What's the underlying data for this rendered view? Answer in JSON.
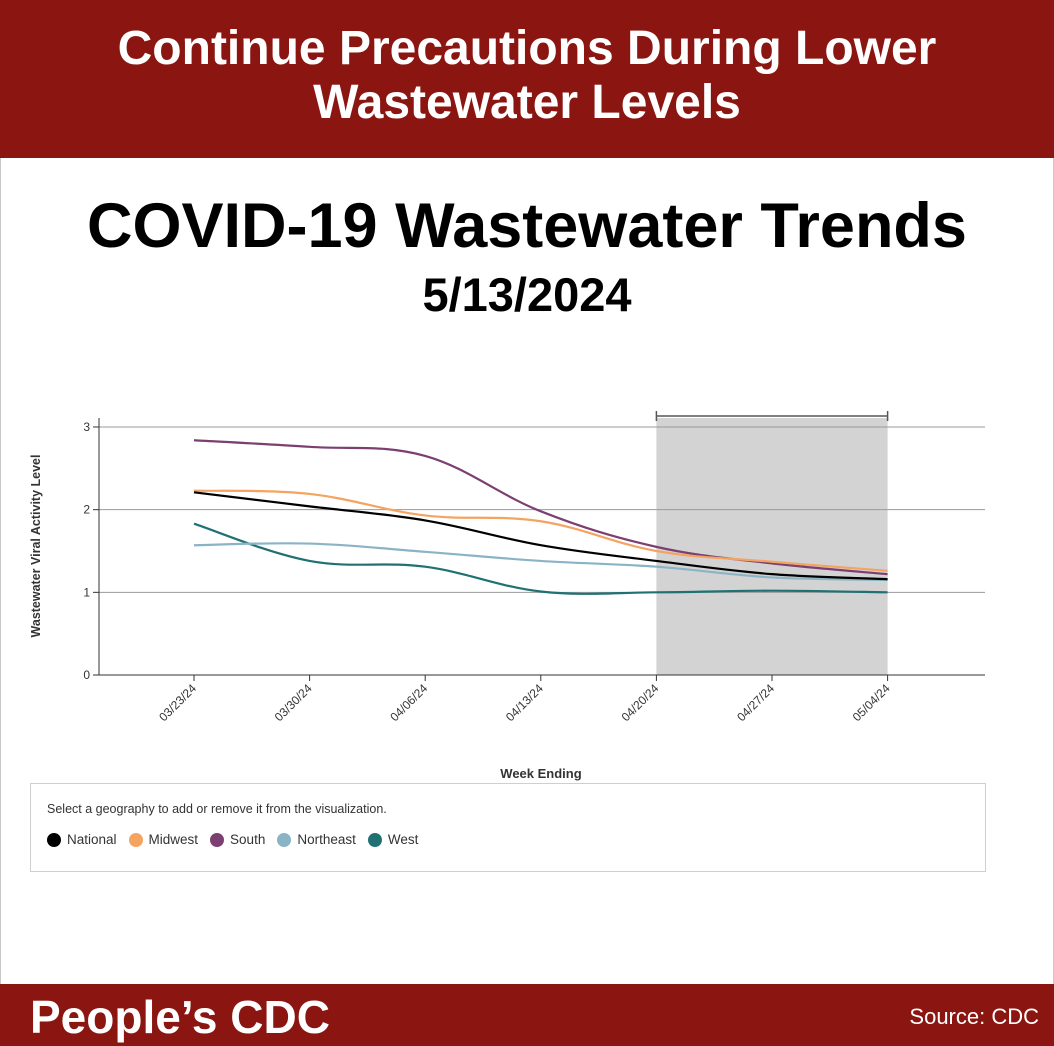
{
  "header": {
    "banner_line1": "Continue Precautions During Lower",
    "banner_line2": "Wastewater Levels",
    "title": "COVID-19 Wastewater Trends",
    "date": "5/13/2024"
  },
  "legend": {
    "instruction": "Select a geography to add or remove it from the visualization."
  },
  "footer": {
    "brand": "People’s CDC",
    "source": "Source: CDC"
  },
  "chart_data": {
    "type": "line",
    "xlabel": "Week Ending",
    "ylabel": "Wastewater Viral Activity Level",
    "ylim": [
      0,
      3
    ],
    "yticks": [
      0,
      1,
      2,
      3
    ],
    "grid": true,
    "categories": [
      "03/23/24",
      "03/30/24",
      "04/06/24",
      "04/13/24",
      "04/20/24",
      "04/27/24",
      "05/04/24"
    ],
    "highlight_range": [
      "04/20/24",
      "05/04/24"
    ],
    "series": [
      {
        "name": "National",
        "color": "#000000",
        "values": [
          2.21,
          2.04,
          1.87,
          1.57,
          1.38,
          1.22,
          1.16
        ]
      },
      {
        "name": "Midwest",
        "color": "#f4a460",
        "values": [
          2.23,
          2.19,
          1.93,
          1.86,
          1.5,
          1.37,
          1.26
        ]
      },
      {
        "name": "South",
        "color": "#7b3f72",
        "values": [
          2.84,
          2.76,
          2.65,
          1.98,
          1.55,
          1.35,
          1.22
        ]
      },
      {
        "name": "Northeast",
        "color": "#8ab4c6",
        "values": [
          1.57,
          1.59,
          1.49,
          1.38,
          1.31,
          1.18,
          1.15
        ]
      },
      {
        "name": "West",
        "color": "#1f7173",
        "values": [
          1.83,
          1.38,
          1.31,
          1.01,
          1.0,
          1.02,
          1.0
        ]
      }
    ]
  }
}
